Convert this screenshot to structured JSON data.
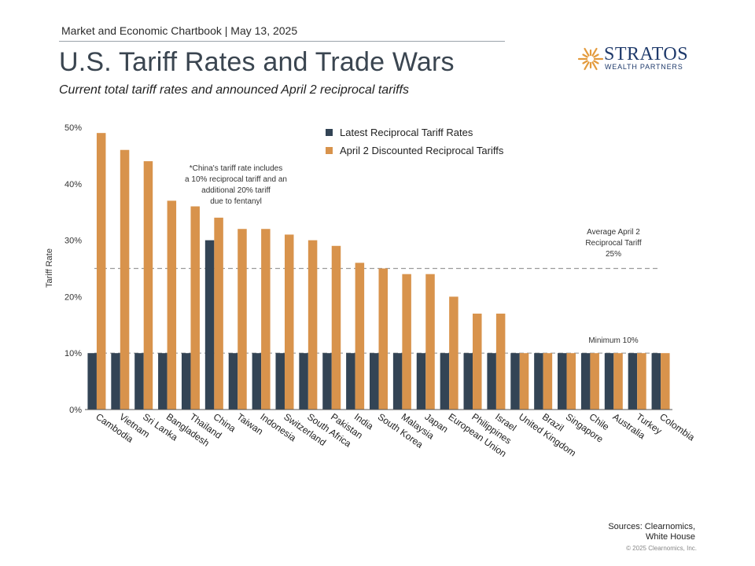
{
  "header": {
    "chartbook": "Market and Economic Chartbook | May 13, 2025",
    "title": "U.S. Tariff Rates and Trade Wars",
    "subtitle": "Current total tariff rates and announced April 2 reciprocal tariffs"
  },
  "logo": {
    "name": "STRATOS",
    "sub": "WEALTH PARTNERS",
    "color": "#1f3a6b",
    "accent": "#e39a3c"
  },
  "footer": {
    "sources_line1": "Sources: Clearnomics,",
    "sources_line2": "White House",
    "copyright": "© 2025 Clearnomics, Inc."
  },
  "chart_data": {
    "type": "bar",
    "title": "U.S. Tariff Rates and Trade Wars",
    "ylabel": "Tariff Rate",
    "ylim": [
      0,
      50
    ],
    "yticks": [
      "0%",
      "10%",
      "20%",
      "30%",
      "40%",
      "50%"
    ],
    "ytick_values": [
      0,
      10,
      20,
      30,
      40,
      50
    ],
    "categories": [
      "Cambodia",
      "Vietnam",
      "Sri Lanka",
      "Bangladesh",
      "Thailand",
      "China",
      "Taiwan",
      "Indonesia",
      "Switzerland",
      "South Africa",
      "Pakistan",
      "India",
      "South Korea",
      "Malaysia",
      "Japan",
      "European Union",
      "Philippines",
      "Israel",
      "United Kingdom",
      "Brazil",
      "Singapore",
      "Chile",
      "Australia",
      "Turkey",
      "Colombia"
    ],
    "series": [
      {
        "name": "Latest Reciprocal Tariff Rates",
        "color": "#334455",
        "values": [
          10,
          10,
          10,
          10,
          10,
          30,
          10,
          10,
          10,
          10,
          10,
          10,
          10,
          10,
          10,
          10,
          10,
          10,
          10,
          10,
          10,
          10,
          10,
          10,
          10
        ]
      },
      {
        "name": "April 2 Discounted Reciprocal Tariffs",
        "color": "#d8934c",
        "values": [
          49,
          46,
          44,
          37,
          36,
          34,
          32,
          32,
          31,
          30,
          29,
          26,
          25,
          24,
          24,
          20,
          17,
          17,
          10,
          10,
          10,
          10,
          10,
          10,
          10
        ]
      }
    ],
    "reference_lines": [
      {
        "value": 25,
        "label_lines": [
          "Average April 2",
          "Reciprocal Tariff",
          "25%"
        ]
      },
      {
        "value": 10,
        "label_lines": [
          "Minimum 10%"
        ]
      }
    ],
    "annotation_lines": [
      "*China's tariff rate includes",
      "a 10% reciprocal tariff and an",
      "additional 20% tariff",
      "due to fentanyl"
    ],
    "legend_position": "top-right",
    "grid": false
  }
}
